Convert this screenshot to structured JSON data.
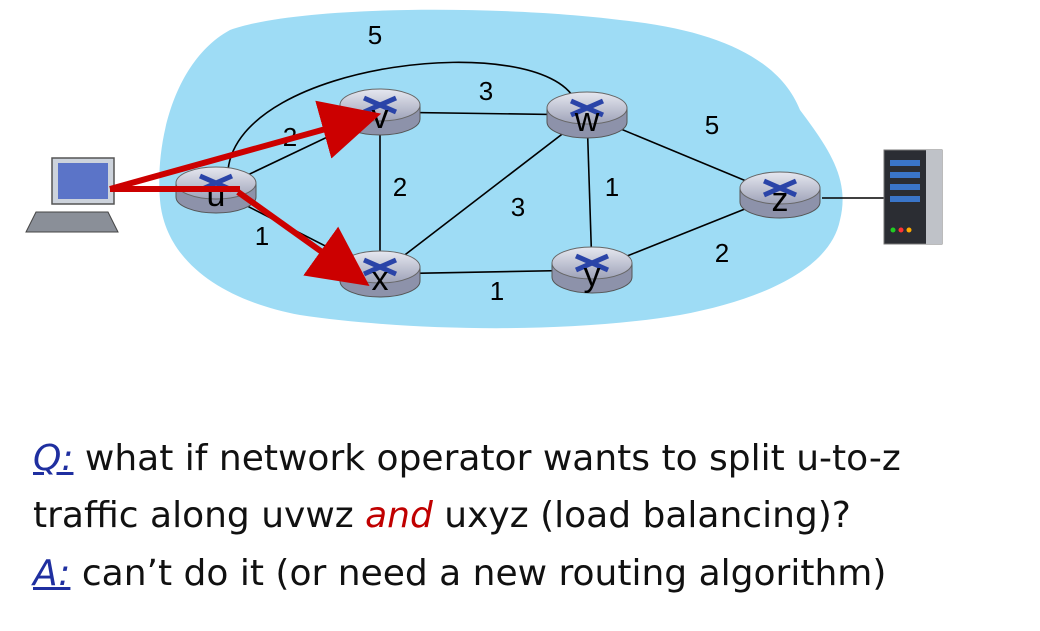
{
  "diagram": {
    "nodes": [
      {
        "id": "u",
        "label": "u"
      },
      {
        "id": "v",
        "label": "v"
      },
      {
        "id": "w",
        "label": "w"
      },
      {
        "id": "x",
        "label": "x"
      },
      {
        "id": "y",
        "label": "y"
      },
      {
        "id": "z",
        "label": "z"
      }
    ],
    "edges": [
      {
        "from": "u",
        "to": "w",
        "weight": "5"
      },
      {
        "from": "u",
        "to": "v",
        "weight": "2"
      },
      {
        "from": "u",
        "to": "x",
        "weight": "1"
      },
      {
        "from": "v",
        "to": "w",
        "weight": "3"
      },
      {
        "from": "v",
        "to": "x",
        "weight": "2"
      },
      {
        "from": "x",
        "to": "w",
        "weight": "3"
      },
      {
        "from": "w",
        "to": "y",
        "weight": "1"
      },
      {
        "from": "w",
        "to": "z",
        "weight": "5"
      },
      {
        "from": "x",
        "to": "y",
        "weight": "1"
      },
      {
        "from": "y",
        "to": "z",
        "weight": "2"
      }
    ],
    "colors": {
      "network_cloud": "#9edcf5",
      "flow_arrows": "#cc0000",
      "router_body": "#c9ccd8",
      "router_cross": "#2a44a8"
    },
    "icons": [
      "computer-host-icon",
      "server-icon",
      "router-icon"
    ]
  },
  "text": {
    "line1_label": "Q:",
    "line1_rest": " what if network operator wants to split  u-to-z",
    "line2_start": "traffic along uvwz ",
    "line2_emph": "and",
    "line2_end": " uxyz (load balancing)?",
    "line3_label": "A:",
    "line3_rest": " can’t do it (or need a new routing algorithm)"
  }
}
